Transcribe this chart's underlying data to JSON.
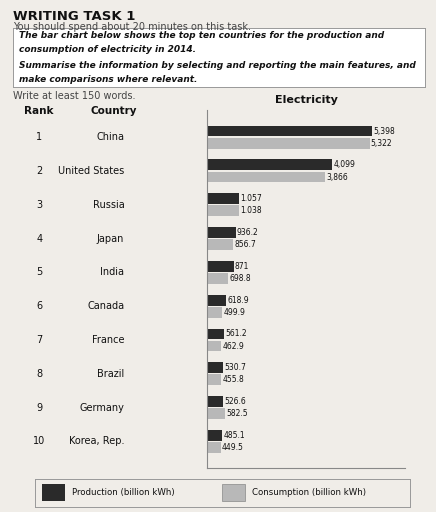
{
  "title_main": "WRITING TASK 1",
  "subtitle": "You should spend about 20 minutes on this task.",
  "box_text_line1": "The bar chart below shows the top ten countries for the production and",
  "box_text_line2": "consumption of electricity in 2014.",
  "box_text_line3": "Summarise the information by selecting and reporting the main features, and",
  "box_text_line4": "make comparisons where relevant.",
  "write_note": "Write at least 150 words.",
  "chart_title": "Electricity",
  "rank_label": "Rank",
  "country_label": "Country",
  "countries": [
    "China",
    "United States",
    "Russia",
    "Japan",
    "India",
    "Canada",
    "France",
    "Brazil",
    "Germany",
    "Korea, Rep."
  ],
  "ranks": [
    "1",
    "2",
    "3",
    "4",
    "5",
    "6",
    "7",
    "8",
    "9",
    "10"
  ],
  "production": [
    5398,
    4099,
    1057,
    936.2,
    871,
    618.9,
    561.2,
    530.7,
    526.6,
    485.1
  ],
  "consumption": [
    5322,
    3866,
    1038,
    856.7,
    698.8,
    499.9,
    462.9,
    455.8,
    582.5,
    449.5
  ],
  "production_labels": [
    "5,398",
    "4,099",
    "1.057",
    "936.2",
    "871",
    "618.9",
    "561.2",
    "530.7",
    "526.6",
    "485.1"
  ],
  "consumption_labels": [
    "5,322",
    "3,866",
    "1.038",
    "856.7",
    "698.8",
    "499.9",
    "462.9",
    "455.8",
    "582.5",
    "449.5"
  ],
  "production_color": "#2a2a2a",
  "consumption_color": "#b8b8b8",
  "legend_production": "Production (billion kWh)",
  "legend_consumption": "Consumption (billion kWh)",
  "bg_color": "#f0ede8",
  "box_bg": "#ffffff",
  "bar_height": 0.32,
  "bar_gap": 0.04,
  "xlim_max": 6500
}
